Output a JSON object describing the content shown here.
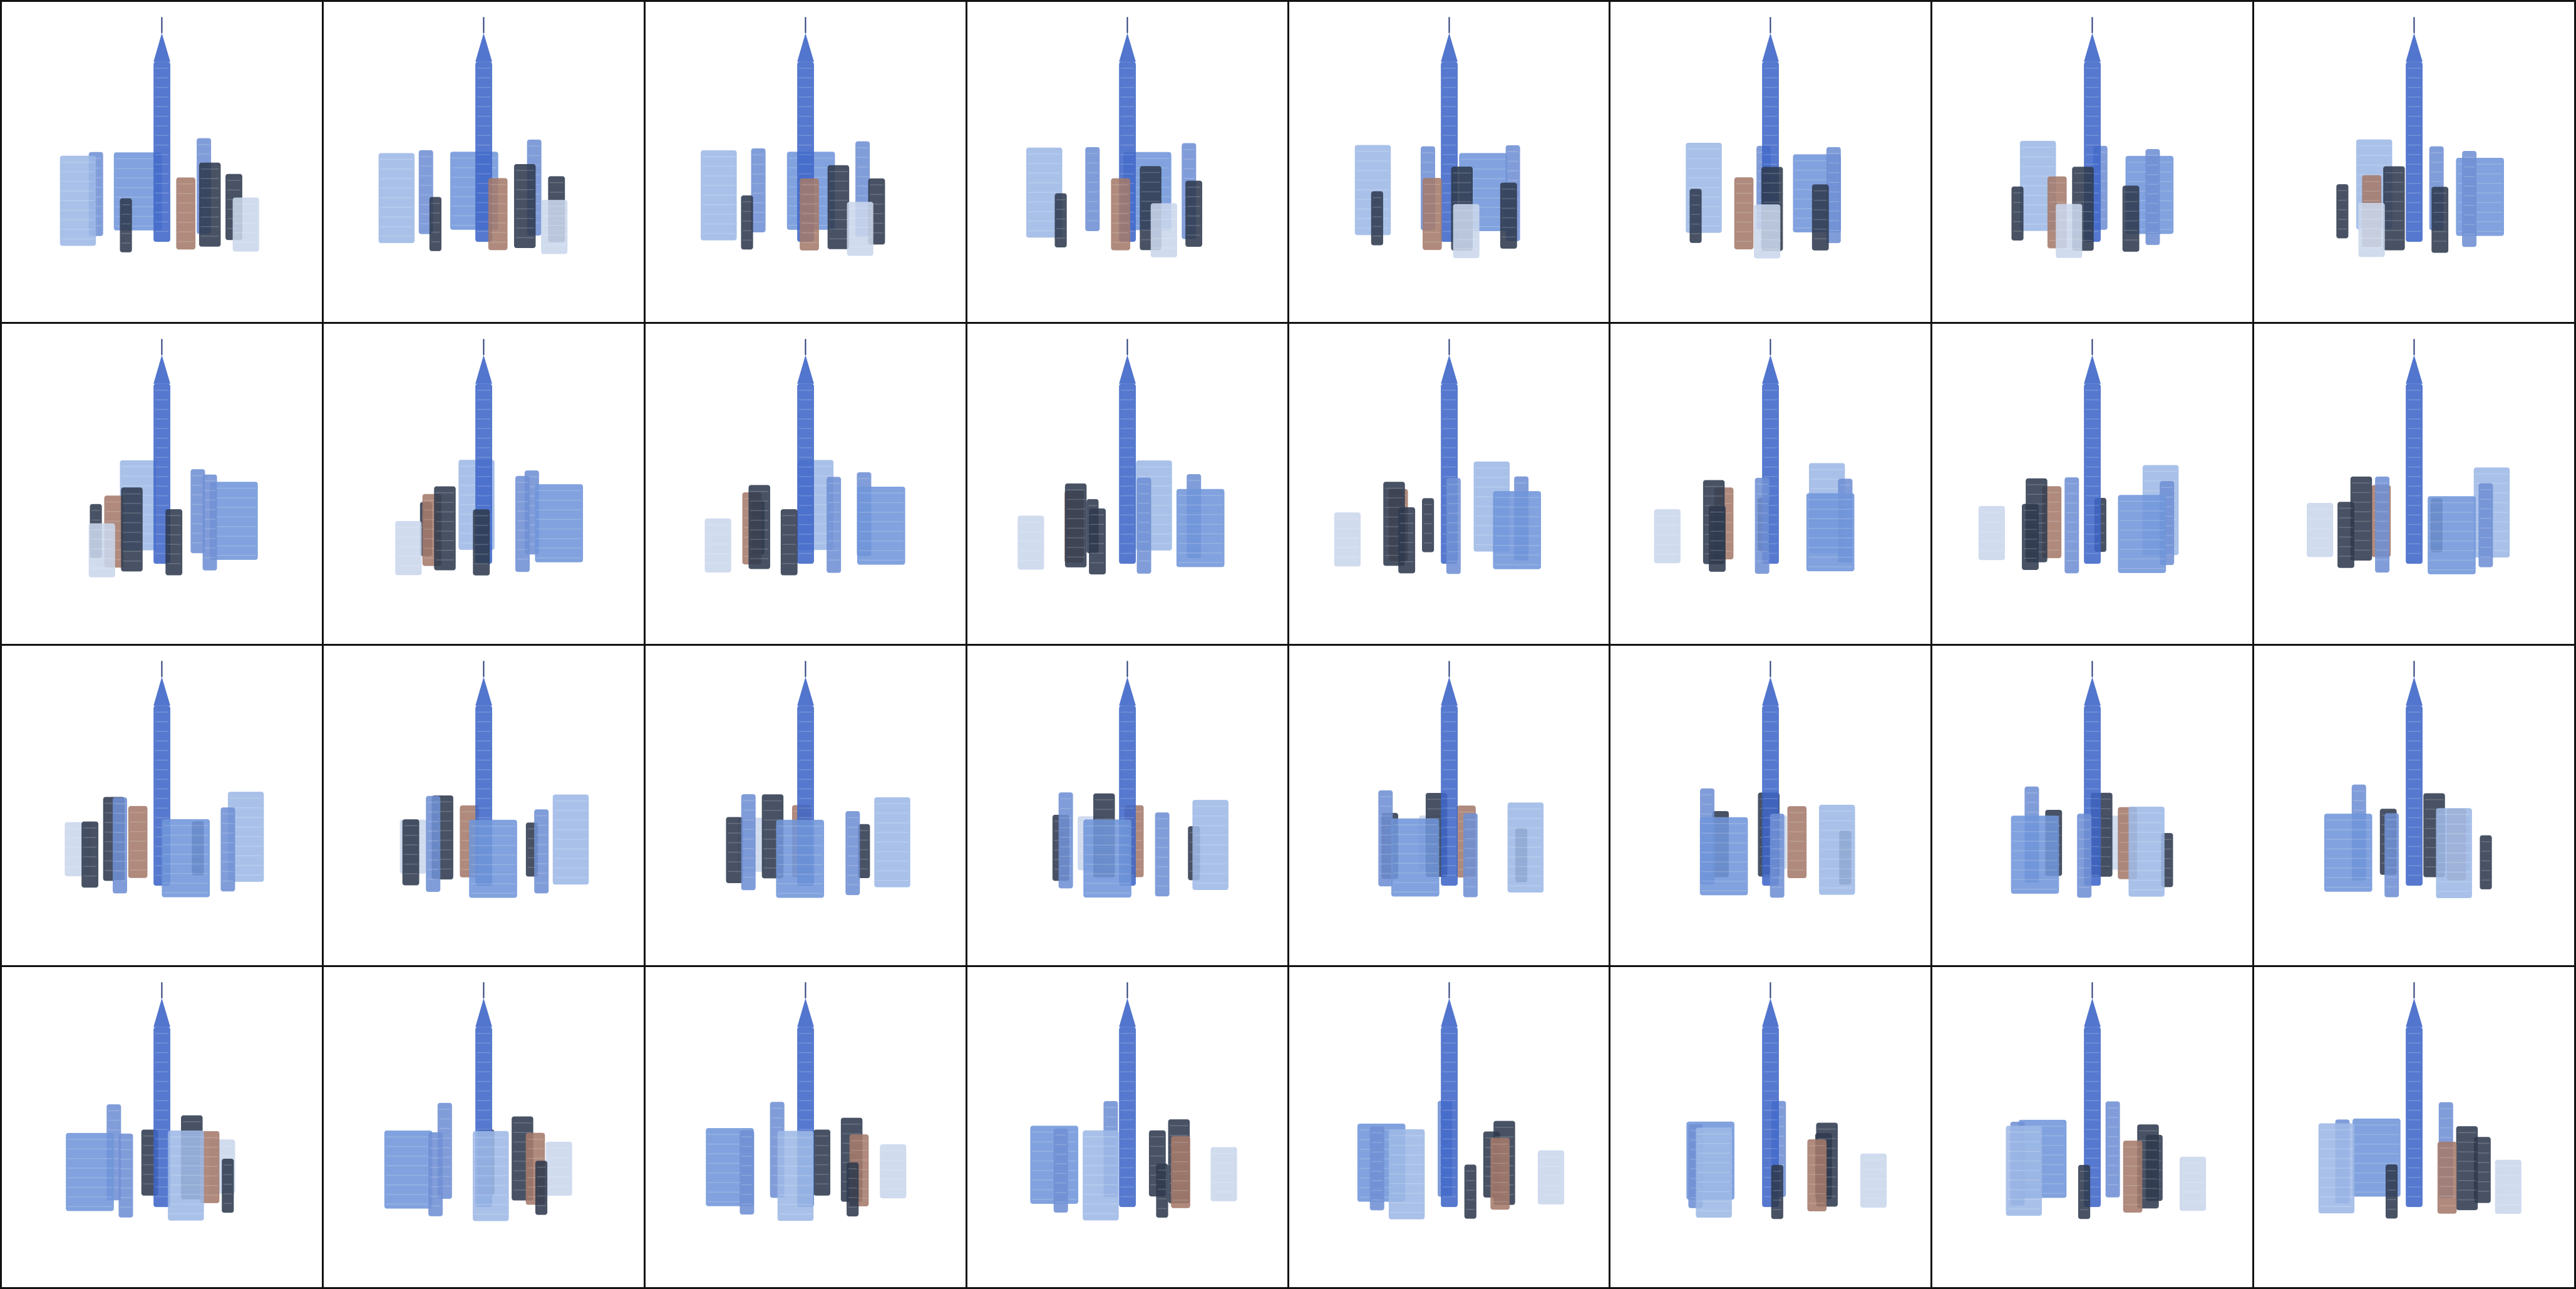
{
  "grid": {
    "rows": 4,
    "cols": 8,
    "background_color": "#ffffff",
    "line_color": "#111111"
  },
  "palette": {
    "tower_blue": "#3f66c8",
    "glass_light": "#9db8e6",
    "glass_mid": "#6f8fd4",
    "dark_tower": "#2f3a4f",
    "copper": "#a47a6b",
    "block_blue": "#6f95d9",
    "pale": "#c9d6ec"
  },
  "frames": [
    {
      "angle": 0
    },
    {
      "angle": 11.25
    },
    {
      "angle": 22.5
    },
    {
      "angle": 33.75
    },
    {
      "angle": 45
    },
    {
      "angle": 56.25
    },
    {
      "angle": 67.5
    },
    {
      "angle": 78.75
    },
    {
      "angle": 90
    },
    {
      "angle": 101.25
    },
    {
      "angle": 112.5
    },
    {
      "angle": 123.75
    },
    {
      "angle": 135
    },
    {
      "angle": 146.25
    },
    {
      "angle": 157.5
    },
    {
      "angle": 168.75
    },
    {
      "angle": 180
    },
    {
      "angle": 191.25
    },
    {
      "angle": 202.5
    },
    {
      "angle": 213.75
    },
    {
      "angle": 225
    },
    {
      "angle": 236.25
    },
    {
      "angle": 247.5
    },
    {
      "angle": 258.75
    },
    {
      "angle": 270
    },
    {
      "angle": 281.25
    },
    {
      "angle": 292.5
    },
    {
      "angle": 303.75
    },
    {
      "angle": 315
    },
    {
      "angle": 326.25
    },
    {
      "angle": 337.5
    },
    {
      "angle": 348.75
    }
  ]
}
